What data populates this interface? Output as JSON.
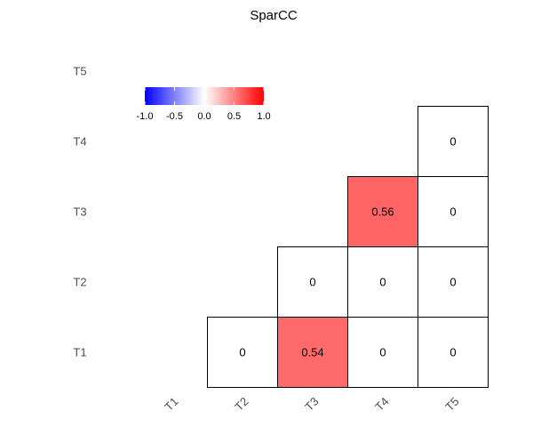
{
  "chart_data": {
    "type": "heatmap",
    "title": "SparCC",
    "x_categories": [
      "T1",
      "T2",
      "T3",
      "T4",
      "T5"
    ],
    "y_categories": [
      "T1",
      "T2",
      "T3",
      "T4",
      "T5"
    ],
    "cells": [
      {
        "x": "T2",
        "y": "T1",
        "value": 0,
        "label": "0"
      },
      {
        "x": "T3",
        "y": "T1",
        "value": 0.54,
        "label": "0.54"
      },
      {
        "x": "T4",
        "y": "T1",
        "value": 0,
        "label": "0"
      },
      {
        "x": "T5",
        "y": "T1",
        "value": 0,
        "label": "0"
      },
      {
        "x": "T3",
        "y": "T2",
        "value": 0,
        "label": "0"
      },
      {
        "x": "T4",
        "y": "T2",
        "value": 0,
        "label": "0"
      },
      {
        "x": "T5",
        "y": "T2",
        "value": 0,
        "label": "0"
      },
      {
        "x": "T4",
        "y": "T3",
        "value": 0.56,
        "label": "0.56"
      },
      {
        "x": "T5",
        "y": "T3",
        "value": 0,
        "label": "0"
      },
      {
        "x": "T5",
        "y": "T4",
        "value": 0,
        "label": "0"
      }
    ],
    "color_scale": {
      "range": [
        -1.0,
        1.0
      ],
      "low_color": "#0000ff",
      "mid_color": "#ffffff",
      "high_color": "#ff0000",
      "ticks": [
        "-1.0",
        "-0.5",
        "0.0",
        "0.5",
        "1.0"
      ]
    },
    "grid": false,
    "legend_placement": "top-left"
  }
}
